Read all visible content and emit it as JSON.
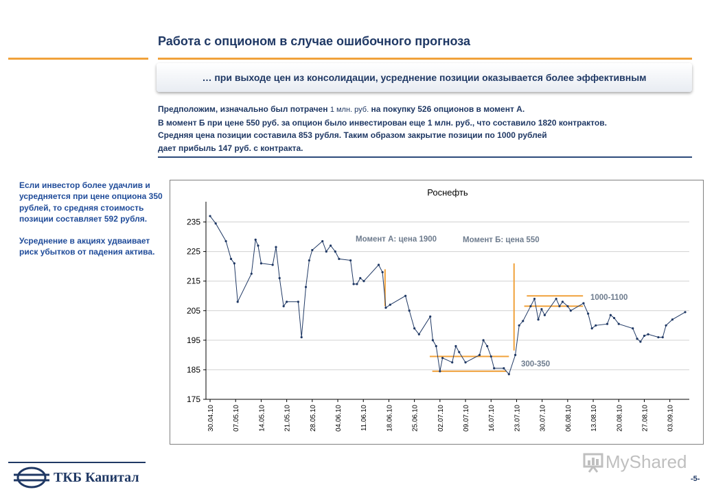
{
  "header": {
    "title": "Работа с опционом в случае ошибочного прогноза",
    "banner": "… при выходе цен из консолидации, усреднение позиции оказывается более эффективным"
  },
  "paragraph": {
    "line1_a": "Предположим, изначально был потрачен ",
    "line1_small": "1 млн. руб.",
    "line1_b": " на покупку 526 опционов в момент А.",
    "line2": "В момент Б при цене 550 руб. за опцион было инвестирован еще 1 млн. руб., что составило 1820 контрактов.",
    "line3": "Средняя  цена позиции составила  853 рубля.  Таким образом закрытие позиции по 1000 рублей",
    "line4": "дает прибыль 147 руб. с контракта."
  },
  "sidebar": {
    "note1": "Если инвестор более удачлив и усредняется при цене опциона 350 рублей, то средняя стоимость позиции составляет 592 рубля.",
    "note2": "Усреднение в акциях удваивает риск убытков от падения актива."
  },
  "chart_data": {
    "type": "line",
    "title": "Роснефть",
    "xlabel": "",
    "ylabel": "",
    "ylim": [
      175,
      240
    ],
    "yticks": [
      175,
      185,
      195,
      205,
      215,
      225,
      235
    ],
    "grid": "horizontal",
    "x_tick_labels": [
      "30.04.10",
      "07.05.10",
      "14.05.10",
      "21.05.10",
      "28.05.10",
      "04.06.10",
      "11.06.10",
      "18.06.10",
      "25.06.10",
      "02.07.10",
      "09.07.10",
      "16.07.10",
      "23.07.10",
      "30.07.10",
      "06.08.10",
      "13.08.10",
      "20.08.10",
      "27.08.10",
      "03.09.10"
    ],
    "x_range": [
      0,
      18.6
    ],
    "series": [
      {
        "name": "",
        "color": "#1f3864",
        "points": [
          [
            0.0,
            237.0
          ],
          [
            0.22,
            234.5
          ],
          [
            0.62,
            228.5
          ],
          [
            0.82,
            222.5
          ],
          [
            0.95,
            221.0
          ],
          [
            1.08,
            208.0
          ],
          [
            1.62,
            217.5
          ],
          [
            1.78,
            229.0
          ],
          [
            1.88,
            227.0
          ],
          [
            2.0,
            221.0
          ],
          [
            2.45,
            220.5
          ],
          [
            2.58,
            226.5
          ],
          [
            2.72,
            216.0
          ],
          [
            2.88,
            206.5
          ],
          [
            3.0,
            208.0
          ],
          [
            3.45,
            208.0
          ],
          [
            3.58,
            196.0
          ],
          [
            3.75,
            213.0
          ],
          [
            3.88,
            222.0
          ],
          [
            4.0,
            225.5
          ],
          [
            4.4,
            228.5
          ],
          [
            4.55,
            225.0
          ],
          [
            4.72,
            227.0
          ],
          [
            4.9,
            225.0
          ],
          [
            5.05,
            222.5
          ],
          [
            5.5,
            222.0
          ],
          [
            5.62,
            214.0
          ],
          [
            5.75,
            214.0
          ],
          [
            5.88,
            216.0
          ],
          [
            6.02,
            215.0
          ],
          [
            6.6,
            220.5
          ],
          [
            6.75,
            218.0
          ],
          [
            6.88,
            206.0
          ],
          [
            7.05,
            207.0
          ],
          [
            7.65,
            210.0
          ],
          [
            7.8,
            205.0
          ],
          [
            8.0,
            199.0
          ],
          [
            8.18,
            197.0
          ],
          [
            8.62,
            203.0
          ],
          [
            8.72,
            195.0
          ],
          [
            8.85,
            193.0
          ],
          [
            9.0,
            184.5
          ],
          [
            9.1,
            189.0
          ],
          [
            9.48,
            187.5
          ],
          [
            9.62,
            193.0
          ],
          [
            9.75,
            191.0
          ],
          [
            10.0,
            187.5
          ],
          [
            10.55,
            190.0
          ],
          [
            10.7,
            195.0
          ],
          [
            10.85,
            193.0
          ],
          [
            11.0,
            189.5
          ],
          [
            11.12,
            185.5
          ],
          [
            11.5,
            185.5
          ],
          [
            11.7,
            183.5
          ],
          [
            11.95,
            190.0
          ],
          [
            12.1,
            200.0
          ],
          [
            12.25,
            201.5
          ],
          [
            12.55,
            206.5
          ],
          [
            12.7,
            209.0
          ],
          [
            12.85,
            202.0
          ],
          [
            12.98,
            205.5
          ],
          [
            13.1,
            203.5
          ],
          [
            13.55,
            209.0
          ],
          [
            13.68,
            206.5
          ],
          [
            13.8,
            208.0
          ],
          [
            14.0,
            206.5
          ],
          [
            14.12,
            205.0
          ],
          [
            14.62,
            207.5
          ],
          [
            14.8,
            204.0
          ],
          [
            14.95,
            199.0
          ],
          [
            15.1,
            200.0
          ],
          [
            15.55,
            200.5
          ],
          [
            15.68,
            203.5
          ],
          [
            15.82,
            202.5
          ],
          [
            16.0,
            200.5
          ],
          [
            16.55,
            199.0
          ],
          [
            16.72,
            195.5
          ],
          [
            16.85,
            194.5
          ],
          [
            17.0,
            196.5
          ],
          [
            17.15,
            197.0
          ],
          [
            17.55,
            196.0
          ],
          [
            17.72,
            196.0
          ],
          [
            17.85,
            200.0
          ],
          [
            18.1,
            202.0
          ],
          [
            18.6,
            204.5
          ]
        ]
      }
    ],
    "annotations": {
      "moment_a": {
        "label": "Момент А: цена 1900",
        "at_x": 6.88
      },
      "moment_b": {
        "label": "Момент Б: цена 550",
        "at_x": 11.95
      },
      "label_300_350": "300-350",
      "label_1000_1100": "1000-1100",
      "orange_color": "#f0a13a"
    }
  },
  "footer": {
    "logo_text": "ТКБ Капитал",
    "watermark": "MyShared",
    "page_number": "-5-"
  }
}
